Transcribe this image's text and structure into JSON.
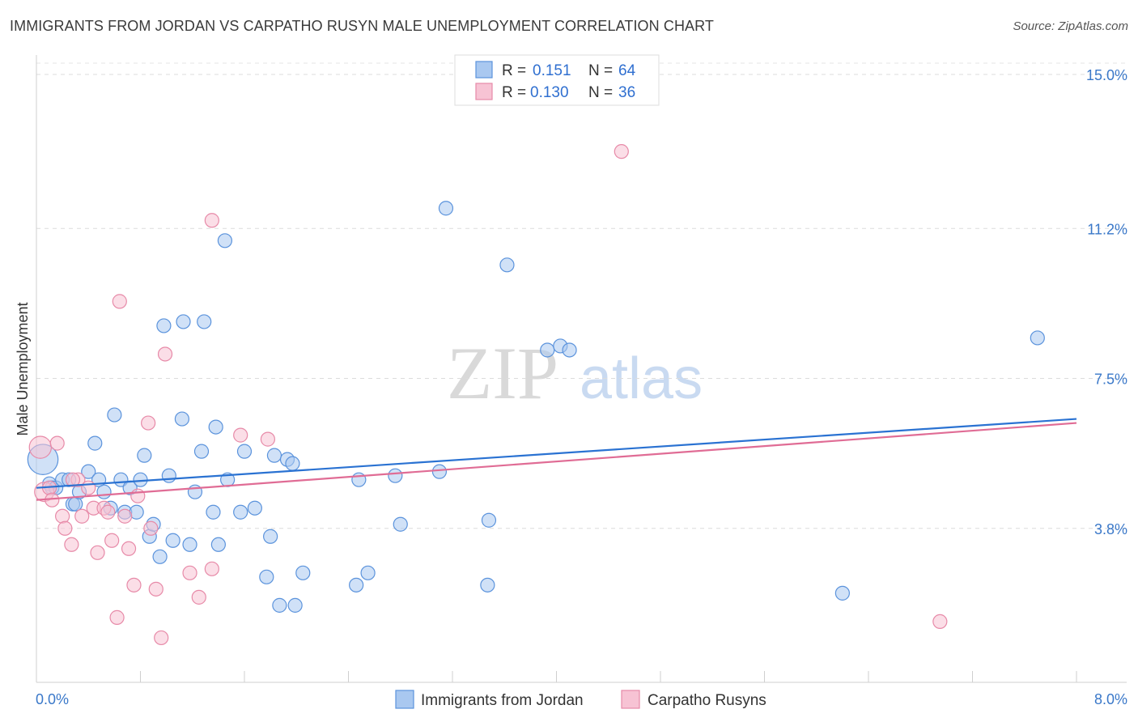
{
  "title": "IMMIGRANTS FROM JORDAN VS CARPATHO RUSYN MALE UNEMPLOYMENT CORRELATION CHART",
  "source": "Source: ZipAtlas.com",
  "watermark": {
    "zip": "ZIP",
    "atlas": "atlas"
  },
  "legend": {
    "r_label": "R =",
    "n_label": "N =",
    "rows": [
      {
        "series": "Immigrants from Jordan",
        "r": "0.151",
        "n": "64"
      },
      {
        "series": "Carpatho Rusyns",
        "r": "0.130",
        "n": "36"
      }
    ]
  },
  "chart_data": {
    "type": "scatter",
    "title": "IMMIGRANTS FROM JORDAN VS CARPATHO RUSYN MALE UNEMPLOYMENT CORRELATION CHART",
    "xlabel": "",
    "ylabel": "Male Unemployment",
    "xlim": [
      0,
      8.0
    ],
    "ylim": [
      0,
      15.4
    ],
    "x_tick_labels": [
      "0.0%",
      "8.0%"
    ],
    "y_ticks": [
      3.8,
      7.5,
      11.2,
      15.0
    ],
    "y_tick_labels": [
      "3.8%",
      "7.5%",
      "11.2%",
      "15.0%"
    ],
    "x_minor_ticks": [
      0.8,
      1.6,
      2.4,
      3.2,
      4.0,
      4.8,
      5.6,
      6.4,
      7.2,
      8.0
    ],
    "grid": true,
    "series": [
      {
        "name": "Immigrants from Jordan",
        "color": "#5b93dc",
        "fill": "#a9c8f0",
        "trend": {
          "x": [
            0,
            8.0
          ],
          "y": [
            4.8,
            6.5
          ],
          "color": "#2a72d2"
        },
        "points": [
          [
            0.05,
            5.5,
            2.2
          ],
          [
            0.1,
            4.9,
            1
          ],
          [
            0.12,
            4.8,
            1
          ],
          [
            0.15,
            4.8,
            1
          ],
          [
            0.2,
            5.0,
            1
          ],
          [
            0.25,
            5.0,
            1
          ],
          [
            0.28,
            4.4,
            1
          ],
          [
            0.3,
            4.4,
            1
          ],
          [
            0.33,
            4.7,
            1
          ],
          [
            0.4,
            5.2,
            1
          ],
          [
            0.45,
            5.9,
            1
          ],
          [
            0.48,
            5.0,
            1
          ],
          [
            0.52,
            4.7,
            1
          ],
          [
            0.57,
            4.3,
            1
          ],
          [
            0.6,
            6.6,
            1
          ],
          [
            0.65,
            5.0,
            1
          ],
          [
            0.68,
            4.2,
            1
          ],
          [
            0.72,
            4.8,
            1
          ],
          [
            0.77,
            4.2,
            1
          ],
          [
            0.8,
            5.0,
            1
          ],
          [
            0.83,
            5.6,
            1
          ],
          [
            0.87,
            3.6,
            1
          ],
          [
            0.9,
            3.9,
            1
          ],
          [
            0.95,
            3.1,
            1
          ],
          [
            0.98,
            8.8,
            1
          ],
          [
            1.02,
            5.1,
            1
          ],
          [
            1.05,
            3.5,
            1
          ],
          [
            1.12,
            6.5,
            1
          ],
          [
            1.13,
            8.9,
            1
          ],
          [
            1.18,
            3.4,
            1
          ],
          [
            1.22,
            4.7,
            1
          ],
          [
            1.27,
            5.7,
            1
          ],
          [
            1.29,
            8.9,
            1
          ],
          [
            1.36,
            4.2,
            1
          ],
          [
            1.38,
            6.3,
            1
          ],
          [
            1.4,
            3.4,
            1
          ],
          [
            1.47,
            5.0,
            1
          ],
          [
            1.45,
            10.9,
            1
          ],
          [
            1.57,
            4.2,
            1
          ],
          [
            1.6,
            5.7,
            1
          ],
          [
            1.68,
            4.3,
            1
          ],
          [
            1.77,
            2.6,
            1
          ],
          [
            1.8,
            3.6,
            1
          ],
          [
            1.83,
            5.6,
            1
          ],
          [
            1.87,
            1.9,
            1
          ],
          [
            1.93,
            5.5,
            1
          ],
          [
            1.97,
            5.4,
            1
          ],
          [
            1.99,
            1.9,
            1
          ],
          [
            2.05,
            2.7,
            1
          ],
          [
            2.46,
            2.4,
            1
          ],
          [
            2.48,
            5.0,
            1
          ],
          [
            2.55,
            2.7,
            1
          ],
          [
            2.76,
            5.1,
            1
          ],
          [
            2.8,
            3.9,
            1
          ],
          [
            3.1,
            5.2,
            1
          ],
          [
            3.48,
            4.0,
            1
          ],
          [
            3.47,
            2.4,
            1
          ],
          [
            3.62,
            10.3,
            1
          ],
          [
            3.93,
            8.2,
            1
          ],
          [
            4.03,
            8.3,
            1
          ],
          [
            3.15,
            11.7,
            1
          ],
          [
            6.2,
            2.2,
            1
          ],
          [
            7.7,
            8.5,
            1
          ],
          [
            4.1,
            8.2,
            1
          ]
        ]
      },
      {
        "name": "Carpatho Rusyns",
        "color": "#e78aa8",
        "fill": "#f7c3d4",
        "trend": {
          "x": [
            0,
            8.0
          ],
          "y": [
            4.5,
            6.4
          ],
          "color": "#e06c95"
        },
        "points": [
          [
            0.03,
            5.8,
            1.6
          ],
          [
            0.06,
            4.7,
            1.4
          ],
          [
            0.1,
            4.8,
            1
          ],
          [
            0.12,
            4.5,
            1
          ],
          [
            0.16,
            5.9,
            1
          ],
          [
            0.2,
            4.1,
            1
          ],
          [
            0.22,
            3.8,
            1
          ],
          [
            0.27,
            3.4,
            1
          ],
          [
            0.32,
            5.0,
            1
          ],
          [
            0.35,
            4.1,
            1
          ],
          [
            0.4,
            4.8,
            1
          ],
          [
            0.44,
            4.3,
            1
          ],
          [
            0.47,
            3.2,
            1
          ],
          [
            0.52,
            4.3,
            1
          ],
          [
            0.55,
            4.2,
            1
          ],
          [
            0.58,
            3.5,
            1
          ],
          [
            0.62,
            1.6,
            1
          ],
          [
            0.64,
            9.4,
            1
          ],
          [
            0.68,
            4.1,
            1
          ],
          [
            0.71,
            3.3,
            1
          ],
          [
            0.75,
            2.4,
            1
          ],
          [
            0.78,
            4.6,
            1
          ],
          [
            0.86,
            6.4,
            1
          ],
          [
            0.88,
            3.8,
            1
          ],
          [
            0.92,
            2.3,
            1
          ],
          [
            0.96,
            1.1,
            1
          ],
          [
            0.99,
            8.1,
            1
          ],
          [
            1.18,
            2.7,
            1
          ],
          [
            1.25,
            2.1,
            1
          ],
          [
            1.35,
            2.8,
            1
          ],
          [
            1.35,
            11.4,
            1
          ],
          [
            1.57,
            6.1,
            1
          ],
          [
            1.78,
            6.0,
            1
          ],
          [
            4.5,
            13.1,
            1
          ],
          [
            6.95,
            1.5,
            1
          ],
          [
            0.28,
            5.0,
            1
          ]
        ]
      }
    ]
  }
}
